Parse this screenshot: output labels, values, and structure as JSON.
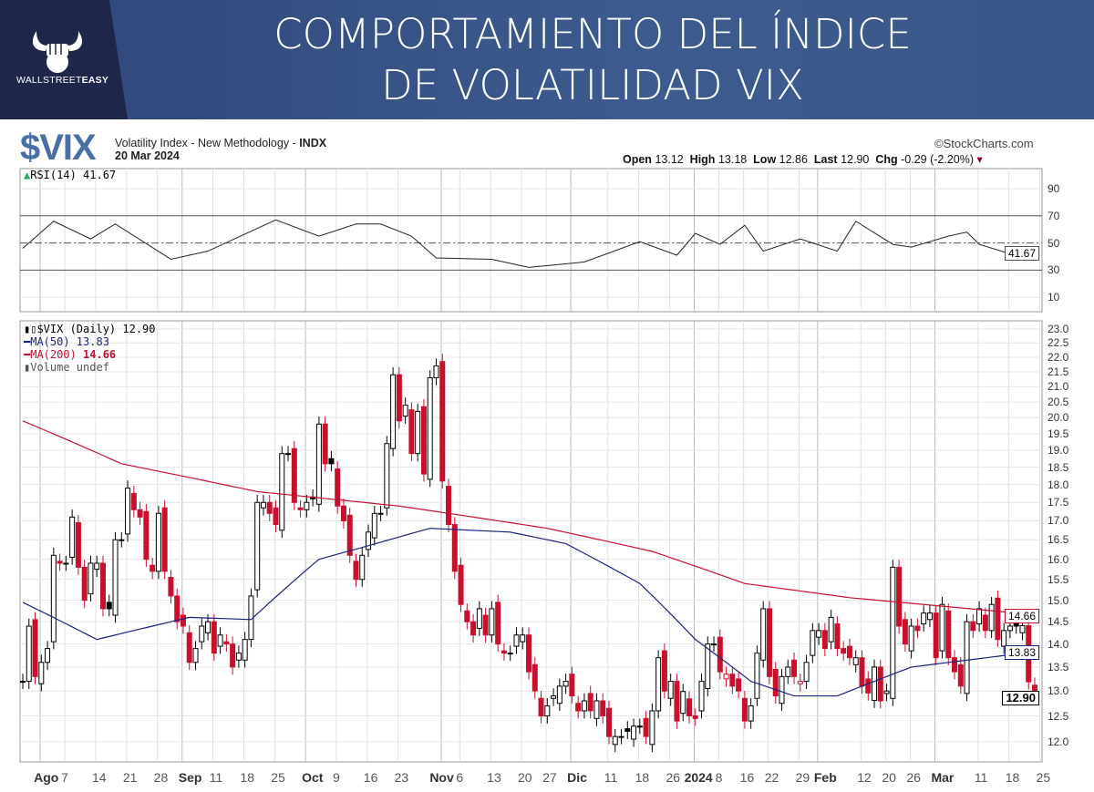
{
  "header": {
    "title_line1": "COMPORTAMIENTO DEL ÍNDICE",
    "title_line2": "DE VOLATILIDAD VIX",
    "logo_text_light": "WALLSTREET",
    "logo_text_bold": "EASY"
  },
  "chart_info": {
    "symbol": "$VIX",
    "description": "Volatility Index - New Methodology - ",
    "exchange": "INDX",
    "date": "20 Mar 2024",
    "source": "©StockCharts.com",
    "open_label": "Open",
    "open": "13.12",
    "high_label": "High",
    "high": "13.18",
    "low_label": "Low",
    "low": "12.86",
    "last_label": "Last",
    "last": "12.90",
    "chg_label": "Chg",
    "chg": "-0.29 (-2.20%)"
  },
  "legend": {
    "rsi": "RSI(14) 41.67",
    "price": "$VIX (Daily) 12.90",
    "ma50": "MA(50) 13.83",
    "ma200_a": "MA(200) ",
    "ma200_b": "14.66",
    "volume": "Volume undef"
  },
  "tags": {
    "rsi": "41.67",
    "ma200": "14.66",
    "ma50": "13.83",
    "last": "12.90"
  },
  "colors": {
    "up": "#000000",
    "down": "#c8102e",
    "ma50": "#1a237e",
    "ma200": "#c8102e",
    "header": "#1e2649"
  },
  "chart_data": {
    "type": "candlestick",
    "title": "$VIX Volatility Index - New Methodology",
    "scale": "log",
    "ylim": [
      11.8,
      23.2
    ],
    "y_ticks": [
      12.0,
      12.5,
      13.0,
      13.5,
      14.0,
      14.5,
      15.0,
      15.5,
      16.0,
      16.5,
      17.0,
      17.5,
      18.0,
      18.5,
      19.0,
      19.5,
      20.0,
      20.5,
      21.0,
      21.5,
      22.0,
      22.5,
      23.0
    ],
    "rsi_ticks": [
      10,
      30,
      50,
      70,
      90
    ],
    "closes": [
      13.2,
      14.4,
      13.3,
      13.6,
      13.9,
      16.1,
      15.9,
      15.9,
      17.1,
      15.8,
      15.0,
      15.9,
      15.9,
      14.8,
      14.8,
      16.5,
      16.5,
      17.9,
      17.3,
      17.1,
      16.0,
      15.7,
      17.2,
      15.7,
      15.1,
      14.5,
      14.4,
      13.6,
      13.9,
      14.4,
      14.5,
      13.8,
      14.2,
      14.0,
      13.5,
      13.8,
      14.1,
      15.1,
      17.5,
      17.5,
      17.2,
      16.9,
      18.9,
      18.9,
      17.5,
      17.3,
      17.5,
      17.6,
      19.8,
      18.6,
      18.6,
      17.4,
      17.0,
      16.1,
      15.5,
      16.1,
      16.7,
      17.2,
      17.2,
      19.2,
      21.4,
      19.9,
      20.4,
      18.9,
      20.2,
      18.3,
      21.3,
      21.7,
      18.1,
      16.9,
      15.7,
      14.9,
      14.5,
      14.2,
      14.8,
      14.2,
      14.8,
      14.0,
      13.8,
      13.8,
      14.2,
      14.2,
      13.4,
      13.0,
      12.5,
      12.7,
      12.9,
      13.1,
      13.2,
      12.9,
      12.6,
      12.8,
      12.6,
      12.8,
      12.5,
      12.1,
      12.1,
      12.1,
      12.2,
      12.3,
      12.3,
      12.1,
      12.6,
      13.7,
      13.0,
      13.2,
      12.4,
      12.99,
      12.5,
      12.45,
      13.2,
      14.0,
      14.0,
      13.4,
      13.35,
      13.1,
      13.0,
      12.4,
      12.7,
      13.8,
      14.8,
      13.3,
      12.9,
      13.3,
      13.5,
      13.3,
      13.2,
      13.6,
      14.3,
      14.3,
      13.9,
      14.6,
      13.9,
      13.8,
      13.7,
      13.7,
      13.1,
      12.96,
      13.5,
      12.8,
      13.0,
      15.8,
      14.4,
      14.0,
      14.4,
      14.3,
      14.7,
      14.7,
      13.7,
      14.9,
      13.7,
      13.4,
      13.1,
      14.5,
      14.3,
      14.8,
      14.3,
      14.9,
      14.1,
      14.3,
      14.4,
      14.4,
      14.41,
      13.19,
      12.9
    ],
    "ma50": [
      [
        0,
        14.95
      ],
      [
        12,
        14.1
      ],
      [
        27,
        14.6
      ],
      [
        37,
        14.55
      ],
      [
        48,
        16.0
      ],
      [
        55,
        16.3
      ],
      [
        66,
        16.8
      ],
      [
        79,
        16.7
      ],
      [
        88,
        16.4
      ],
      [
        100,
        15.4
      ],
      [
        109,
        14.1
      ],
      [
        118,
        13.2
      ],
      [
        125,
        12.9
      ],
      [
        132,
        12.9
      ],
      [
        138,
        13.2
      ],
      [
        144,
        13.5
      ],
      [
        164,
        13.83
      ]
    ],
    "ma200": [
      [
        0,
        19.9
      ],
      [
        16,
        18.6
      ],
      [
        38,
        17.8
      ],
      [
        61,
        17.4
      ],
      [
        85,
        16.8
      ],
      [
        102,
        16.2
      ],
      [
        117,
        15.4
      ],
      [
        134,
        15.06
      ],
      [
        164,
        14.66
      ]
    ],
    "rsi": [
      [
        0,
        46
      ],
      [
        5,
        66
      ],
      [
        11,
        53
      ],
      [
        15,
        64
      ],
      [
        24,
        38
      ],
      [
        30,
        44
      ],
      [
        41,
        67
      ],
      [
        48,
        55
      ],
      [
        54,
        64
      ],
      [
        58,
        64
      ],
      [
        63,
        55
      ],
      [
        67,
        39
      ],
      [
        76,
        38
      ],
      [
        82,
        32
      ],
      [
        91,
        36
      ],
      [
        100,
        51
      ],
      [
        106,
        41
      ],
      [
        109,
        57
      ],
      [
        113,
        49
      ],
      [
        117,
        63
      ],
      [
        120,
        44
      ],
      [
        126,
        53
      ],
      [
        132,
        44
      ],
      [
        135,
        66
      ],
      [
        141,
        49
      ],
      [
        144,
        47
      ],
      [
        150,
        55
      ],
      [
        153,
        58
      ],
      [
        155,
        49
      ],
      [
        160,
        42
      ],
      [
        164,
        41.67
      ]
    ],
    "x_labels": [
      {
        "label": "Ago",
        "i": 4,
        "bold": true
      },
      {
        "label": "7",
        "i": 8
      },
      {
        "label": "14",
        "i": 13
      },
      {
        "label": "21",
        "i": 18
      },
      {
        "label": "28",
        "i": 23
      },
      {
        "label": "Sep",
        "i": 27,
        "bold": true
      },
      {
        "label": "11",
        "i": 32
      },
      {
        "label": "18",
        "i": 37
      },
      {
        "label": "25",
        "i": 42
      },
      {
        "label": "Oct",
        "i": 47,
        "bold": true
      },
      {
        "label": "9",
        "i": 52
      },
      {
        "label": "16",
        "i": 57
      },
      {
        "label": "23",
        "i": 62
      },
      {
        "label": "Nov",
        "i": 69,
        "bold": true
      },
      {
        "label": "6",
        "i": 72
      },
      {
        "label": "13",
        "i": 77
      },
      {
        "label": "20",
        "i": 82
      },
      {
        "label": "27",
        "i": 86
      },
      {
        "label": "Dic",
        "i": 90,
        "bold": true
      },
      {
        "label": "11",
        "i": 96
      },
      {
        "label": "18",
        "i": 101
      },
      {
        "label": "26",
        "i": 106
      },
      {
        "label": "2024",
        "i": 110,
        "bold": true
      },
      {
        "label": "8",
        "i": 114
      },
      {
        "label": "16",
        "i": 118
      },
      {
        "label": "22",
        "i": 122
      },
      {
        "label": "29",
        "i": 127
      },
      {
        "label": "Feb",
        "i": 130,
        "bold": true
      },
      {
        "label": "12",
        "i": 137
      },
      {
        "label": "20",
        "i": 141
      },
      {
        "label": "26",
        "i": 145
      },
      {
        "label": "Mar",
        "i": 149,
        "bold": true
      },
      {
        "label": "11",
        "i": 156
      },
      {
        "label": "18",
        "i": 161
      },
      {
        "label": "25",
        "i": 166
      }
    ]
  }
}
